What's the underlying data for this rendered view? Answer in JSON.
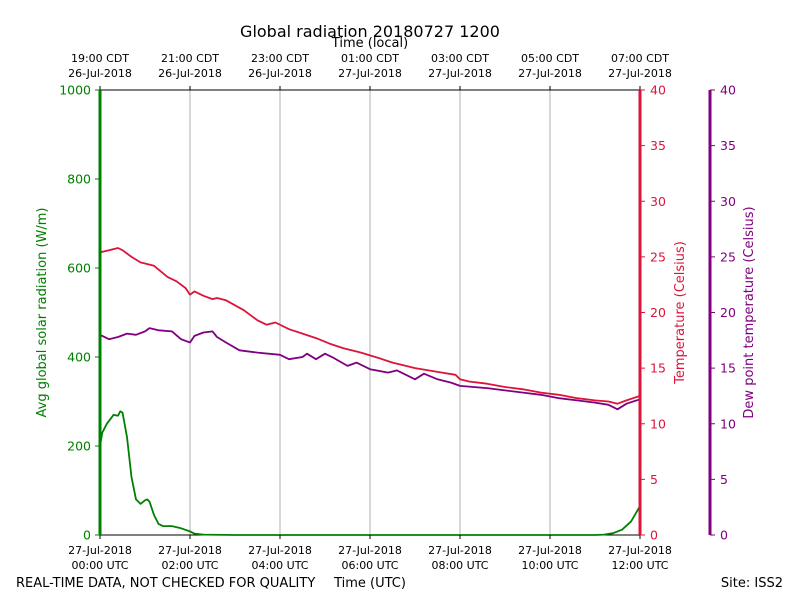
{
  "chart_data": {
    "type": "line",
    "title": "Global radiation 20180727 1200",
    "top_axis_label": "Time (local)",
    "xlabel": "Time (UTC)",
    "footer_left": "REAL-TIME DATA, NOT CHECKED FOR QUALITY",
    "footer_right": "Site: ISS2",
    "x_range_hours": [
      0,
      12
    ],
    "bottom_ticks": [
      {
        "h": 0,
        "line1": "27-Jul-2018",
        "line2": "00:00 UTC"
      },
      {
        "h": 2,
        "line1": "27-Jul-2018",
        "line2": "02:00 UTC"
      },
      {
        "h": 4,
        "line1": "27-Jul-2018",
        "line2": "04:00 UTC"
      },
      {
        "h": 6,
        "line1": "27-Jul-2018",
        "line2": "06:00 UTC"
      },
      {
        "h": 8,
        "line1": "27-Jul-2018",
        "line2": "08:00 UTC"
      },
      {
        "h": 10,
        "line1": "27-Jul-2018",
        "line2": "10:00 UTC"
      },
      {
        "h": 12,
        "line1": "27-Jul-2018",
        "line2": "12:00 UTC"
      }
    ],
    "top_ticks": [
      {
        "h": 0,
        "line1": "19:00 CDT",
        "line2": "26-Jul-2018"
      },
      {
        "h": 2,
        "line1": "21:00 CDT",
        "line2": "26-Jul-2018"
      },
      {
        "h": 4,
        "line1": "23:00 CDT",
        "line2": "26-Jul-2018"
      },
      {
        "h": 6,
        "line1": "01:00 CDT",
        "line2": "27-Jul-2018"
      },
      {
        "h": 8,
        "line1": "03:00 CDT",
        "line2": "27-Jul-2018"
      },
      {
        "h": 10,
        "line1": "05:00 CDT",
        "line2": "27-Jul-2018"
      },
      {
        "h": 12,
        "line1": "07:00 CDT",
        "line2": "27-Jul-2018"
      }
    ],
    "axes": {
      "radiation": {
        "label": "Avg global solar radiation (W/m)",
        "color": "#008000",
        "ylim": [
          0,
          1000
        ],
        "ticks": [
          0,
          200,
          400,
          600,
          800,
          1000
        ]
      },
      "temperature": {
        "label": "Temperature (Celsius)",
        "color": "#dc143c",
        "ylim": [
          0,
          40
        ],
        "ticks": [
          0,
          5,
          10,
          15,
          20,
          25,
          30,
          35,
          40
        ]
      },
      "dewpoint": {
        "label": "Dew point temperature (Celsius)",
        "color": "#800080",
        "ylim": [
          0,
          40
        ],
        "ticks": [
          0,
          5,
          10,
          15,
          20,
          25,
          30,
          35,
          40
        ]
      }
    },
    "series": [
      {
        "name": "Avg global solar radiation",
        "axis": "radiation",
        "color": "#008000",
        "points": [
          [
            0,
            200
          ],
          [
            0.05,
            230
          ],
          [
            0.15,
            250
          ],
          [
            0.3,
            270
          ],
          [
            0.4,
            268
          ],
          [
            0.45,
            278
          ],
          [
            0.5,
            275
          ],
          [
            0.6,
            220
          ],
          [
            0.7,
            130
          ],
          [
            0.8,
            80
          ],
          [
            0.9,
            70
          ],
          [
            1.0,
            78
          ],
          [
            1.05,
            80
          ],
          [
            1.1,
            75
          ],
          [
            1.2,
            45
          ],
          [
            1.3,
            25
          ],
          [
            1.4,
            20
          ],
          [
            1.6,
            20
          ],
          [
            1.8,
            15
          ],
          [
            2.0,
            8
          ],
          [
            2.1,
            3
          ],
          [
            2.3,
            1
          ],
          [
            3,
            0
          ],
          [
            6,
            0
          ],
          [
            9,
            0
          ],
          [
            11,
            0
          ],
          [
            11.2,
            1
          ],
          [
            11.4,
            4
          ],
          [
            11.6,
            12
          ],
          [
            11.8,
            30
          ],
          [
            12,
            65
          ]
        ]
      },
      {
        "name": "Temperature",
        "axis": "temperature",
        "color": "#dc143c",
        "points": [
          [
            0,
            25.4
          ],
          [
            0.2,
            25.6
          ],
          [
            0.4,
            25.8
          ],
          [
            0.5,
            25.6
          ],
          [
            0.7,
            25
          ],
          [
            0.9,
            24.5
          ],
          [
            1.2,
            24.2
          ],
          [
            1.5,
            23.2
          ],
          [
            1.7,
            22.8
          ],
          [
            1.9,
            22.2
          ],
          [
            2.0,
            21.6
          ],
          [
            2.1,
            21.9
          ],
          [
            2.3,
            21.5
          ],
          [
            2.5,
            21.2
          ],
          [
            2.6,
            21.3
          ],
          [
            2.8,
            21.1
          ],
          [
            3.2,
            20.2
          ],
          [
            3.5,
            19.3
          ],
          [
            3.7,
            18.9
          ],
          [
            3.9,
            19.1
          ],
          [
            4.2,
            18.5
          ],
          [
            4.5,
            18.1
          ],
          [
            4.8,
            17.7
          ],
          [
            5.1,
            17.2
          ],
          [
            5.4,
            16.8
          ],
          [
            5.8,
            16.4
          ],
          [
            6.2,
            15.9
          ],
          [
            6.5,
            15.5
          ],
          [
            6.8,
            15.2
          ],
          [
            7.0,
            15.0
          ],
          [
            7.3,
            14.8
          ],
          [
            7.6,
            14.6
          ],
          [
            7.9,
            14.4
          ],
          [
            8.0,
            14.0
          ],
          [
            8.2,
            13.8
          ],
          [
            8.6,
            13.6
          ],
          [
            9.0,
            13.3
          ],
          [
            9.4,
            13.1
          ],
          [
            9.8,
            12.8
          ],
          [
            10.2,
            12.6
          ],
          [
            10.6,
            12.3
          ],
          [
            11.0,
            12.1
          ],
          [
            11.3,
            12.0
          ],
          [
            11.5,
            11.8
          ],
          [
            11.7,
            12.1
          ],
          [
            12.0,
            12.5
          ]
        ]
      },
      {
        "name": "Dew point temperature",
        "axis": "dewpoint",
        "color": "#800080",
        "points": [
          [
            0,
            18.0
          ],
          [
            0.2,
            17.6
          ],
          [
            0.4,
            17.8
          ],
          [
            0.6,
            18.1
          ],
          [
            0.8,
            18.0
          ],
          [
            1.0,
            18.3
          ],
          [
            1.1,
            18.6
          ],
          [
            1.3,
            18.4
          ],
          [
            1.6,
            18.3
          ],
          [
            1.8,
            17.6
          ],
          [
            2.0,
            17.3
          ],
          [
            2.1,
            17.9
          ],
          [
            2.3,
            18.2
          ],
          [
            2.5,
            18.3
          ],
          [
            2.6,
            17.8
          ],
          [
            2.8,
            17.3
          ],
          [
            3.1,
            16.6
          ],
          [
            3.5,
            16.4
          ],
          [
            4.0,
            16.2
          ],
          [
            4.2,
            15.8
          ],
          [
            4.5,
            16.0
          ],
          [
            4.6,
            16.3
          ],
          [
            4.8,
            15.8
          ],
          [
            5.0,
            16.3
          ],
          [
            5.2,
            15.9
          ],
          [
            5.5,
            15.2
          ],
          [
            5.7,
            15.5
          ],
          [
            6.0,
            14.9
          ],
          [
            6.4,
            14.6
          ],
          [
            6.6,
            14.8
          ],
          [
            7.0,
            14.0
          ],
          [
            7.2,
            14.5
          ],
          [
            7.5,
            14.0
          ],
          [
            7.8,
            13.7
          ],
          [
            8.0,
            13.4
          ],
          [
            8.3,
            13.3
          ],
          [
            8.6,
            13.2
          ],
          [
            9.0,
            13.0
          ],
          [
            9.4,
            12.8
          ],
          [
            9.8,
            12.6
          ],
          [
            10.2,
            12.3
          ],
          [
            10.6,
            12.1
          ],
          [
            11.0,
            11.9
          ],
          [
            11.3,
            11.7
          ],
          [
            11.5,
            11.3
          ],
          [
            11.7,
            11.8
          ],
          [
            12.0,
            12.2
          ]
        ]
      }
    ]
  }
}
